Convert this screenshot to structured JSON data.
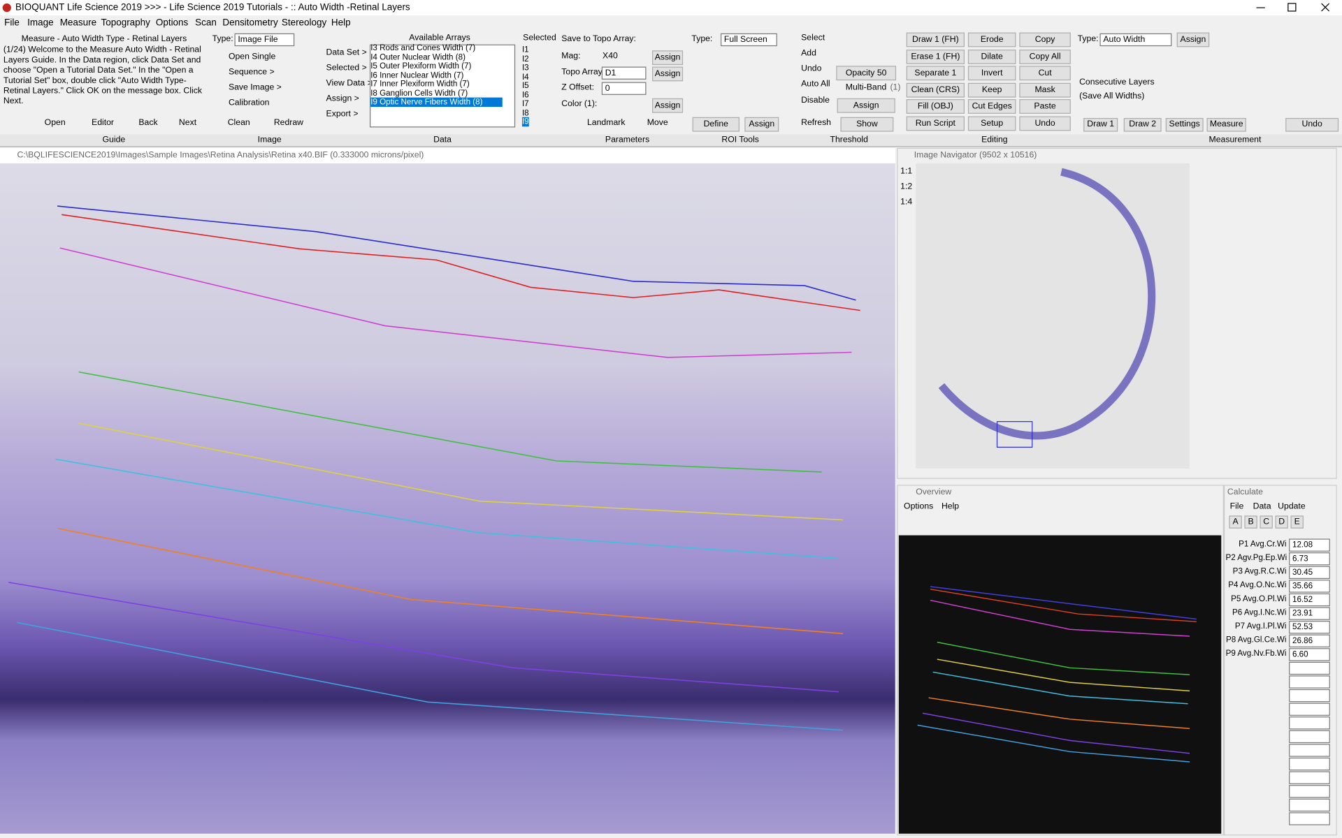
{
  "title_bar": {
    "title": "BIOQUANT Life Science 2019  >>>  - Life Science 2019 Tutorials - :: Auto Width -Retinal Layers"
  },
  "menu": [
    "File",
    "Image",
    "Measure",
    "Topography",
    "Options",
    "Scan",
    "Densitometry",
    "Stereology",
    "Help"
  ],
  "guide": {
    "title": "Measure - Auto Width Type - Retinal Layers",
    "text": "(1/24) Welcome to the Measure Auto Width - Retinal Layers Guide. In the Data region, click Data Set and choose \"Open a Tutorial Data Set.\" In the \"Open a Tutorial Set\" box, double click \"Auto Width Type-Retinal Layers.\" Click OK on the message box. Click Next.",
    "buttons": [
      "Open",
      "Editor",
      "Back",
      "Next"
    ],
    "label": "Guide"
  },
  "image_panel": {
    "type_label": "Type:",
    "type_value": "Image File",
    "items": [
      "Open Single",
      "Sequence >",
      "Save Image >",
      "Calibration"
    ],
    "buttons": [
      "Clean",
      "Redraw"
    ],
    "label": "Image"
  },
  "data_panel": {
    "menu": [
      "Data Set >",
      "Selected >",
      "View Data >",
      "Assign >",
      "Export >"
    ],
    "arrays_header": "Available Arrays",
    "arrays": [
      "I3 Rods and Cones Width (7)",
      "I4 Outer Nuclear Width (8)",
      "I5 Outer Plexiform Width (7)",
      "I6 Inner Nuclear Width (7)",
      "I7 Inner Plexiform Width (7)",
      "I8 Ganglion Cells Width (7)",
      "I9 Optic Nerve Fibers Width (8)"
    ],
    "selected_header": "Selected",
    "selected": [
      "I1",
      "I2",
      "I3",
      "I4",
      "I5",
      "I6",
      "I7",
      "I8",
      "I9"
    ],
    "label": "Data"
  },
  "parameters": {
    "save_label": "Save to Topo Array:",
    "mag_label": "Mag:",
    "mag_value": "X40",
    "topo_label": "Topo Array:",
    "topo_value": "D1",
    "z_label": "Z Offset:",
    "z_value": "0",
    "color_label": "Color (1):",
    "assign": "Assign",
    "landmark": "Landmark",
    "move": "Move",
    "label": "Parameters"
  },
  "roi_tools": {
    "type_label": "Type:",
    "type_value": "Full Screen",
    "define": "Define",
    "assign": "Assign",
    "label": "ROI Tools"
  },
  "threshold": {
    "items": [
      "Select",
      "Add",
      "Undo",
      "Auto All",
      "Disable"
    ],
    "opacity": "Opacity 50",
    "multiband": "Multi-Band",
    "multiband_count": "(1)",
    "assign": "Assign",
    "refresh": "Refresh",
    "show": "Show",
    "label": "Threshold"
  },
  "editing": {
    "rows": [
      [
        "Draw 1 (FH)",
        "Erode",
        "Copy"
      ],
      [
        "Erase 1 (FH)",
        "Dilate",
        "Copy All"
      ],
      [
        "Separate 1",
        "Invert",
        "Cut"
      ],
      [
        "Clean (CRS)",
        "Keep",
        "Mask"
      ],
      [
        "Fill (OBJ)",
        "Cut Edges",
        "Paste"
      ],
      [
        "Run Script",
        "Setup",
        "Undo"
      ]
    ],
    "label": "Editing"
  },
  "measurement": {
    "type_label": "Type:",
    "type_value": "Auto Width",
    "assign": "Assign",
    "consecutive": "Consecutive Layers",
    "save_all": "(Save All Widths)",
    "buttons": [
      "Draw 1",
      "Draw 2",
      "Settings",
      "Measure",
      "Undo"
    ],
    "label": "Measurement"
  },
  "image_window": {
    "title": "C:\\BQLIFESCIENCE2019\\Images\\Sample Images\\Retina Analysis\\Retina x40.BIF (0.333000 microns/pixel)"
  },
  "navigator": {
    "title": "Image Navigator (9502 x 10516)",
    "zooms": [
      "1:1",
      "1:2",
      "1:4"
    ]
  },
  "overview": {
    "title": "Overview",
    "menu": [
      "Options",
      "Help"
    ]
  },
  "calculate": {
    "title": "Calculate",
    "menu": [
      "File",
      "Data",
      "Update"
    ],
    "tabs": [
      "A",
      "B",
      "C",
      "D",
      "E"
    ],
    "rows": [
      {
        "label": "P1 Avg.Cr.Wi",
        "value": "12.08"
      },
      {
        "label": "P2 Agv.Pg.Ep.Wi",
        "value": "6.73"
      },
      {
        "label": "P3 Avg.R.C.Wi",
        "value": "30.45"
      },
      {
        "label": "P4 Avg.O.Nc.Wi",
        "value": "35.66"
      },
      {
        "label": "P5 Avg.O.Pl.Wi",
        "value": "16.52"
      },
      {
        "label": "P6 Avg.I.Nc.Wi",
        "value": "23.91"
      },
      {
        "label": "P7 Avg.I.Pl.Wi",
        "value": "52.53"
      },
      {
        "label": "P8 Avg.Gl.Ce.Wi",
        "value": "26.86"
      },
      {
        "label": "P9 Avg.Nv.Fb.Wi",
        "value": "6.60"
      }
    ]
  }
}
